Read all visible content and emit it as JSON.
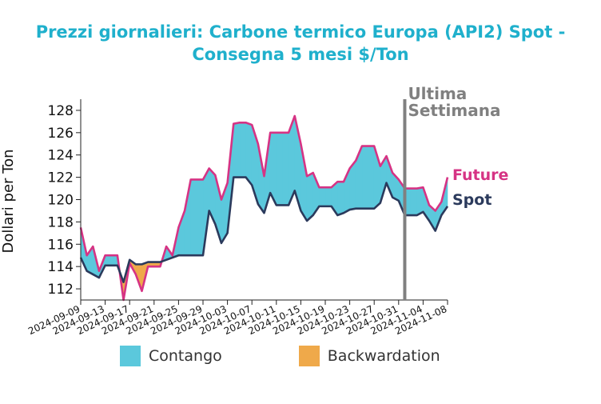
{
  "title_lines": [
    "Prezzi giornalieri: Carbone termico Europa (API2) Spot -",
    "Consegna 5 mesi $/Ton"
  ],
  "colors": {
    "title": "#1fb0cc",
    "future": "#d63384",
    "spot": "#2b3a5c",
    "contango": "#5bc8dc",
    "backwardation": "#efa94a",
    "marker": "#808080"
  },
  "chart_data": {
    "type": "area",
    "title": "Prezzi giornalieri: Carbone termico Europa (API2) Spot - Consegna 5 mesi $/Ton",
    "ylabel": "Dollari per Ton",
    "xlabel": "",
    "ylim": [
      111,
      129
    ],
    "xlim": [
      "2024-09-09",
      "2024-11-08"
    ],
    "yticks": [
      112,
      114,
      116,
      118,
      120,
      122,
      124,
      126,
      128
    ],
    "xticks": [
      "2024-09-09",
      "2024-09-13",
      "2024-09-17",
      "2024-09-21",
      "2024-09-25",
      "2024-09-29",
      "2024-10-03",
      "2024-10-07",
      "2024-10-11",
      "2024-10-15",
      "2024-10-19",
      "2024-10-23",
      "2024-10-27",
      "2024-10-31",
      "2024-11-04",
      "2024-11-08"
    ],
    "marker": {
      "date": "2024-11-01",
      "label_lines": [
        "Ultima",
        "Settimana"
      ]
    },
    "legend": [
      {
        "name": "Contango",
        "color": "#5bc8dc"
      },
      {
        "name": "Backwardation",
        "color": "#efa94a"
      }
    ],
    "series": [
      {
        "name": "Future",
        "color": "#d63384",
        "x": [
          "2024-09-09",
          "2024-09-10",
          "2024-09-11",
          "2024-09-12",
          "2024-09-13",
          "2024-09-14",
          "2024-09-15",
          "2024-09-16",
          "2024-09-17",
          "2024-09-18",
          "2024-09-19",
          "2024-09-20",
          "2024-09-21",
          "2024-09-22",
          "2024-09-23",
          "2024-09-24",
          "2024-09-25",
          "2024-09-26",
          "2024-09-27",
          "2024-09-28",
          "2024-09-29",
          "2024-09-30",
          "2024-10-01",
          "2024-10-02",
          "2024-10-03",
          "2024-10-04",
          "2024-10-05",
          "2024-10-06",
          "2024-10-07",
          "2024-10-08",
          "2024-10-09",
          "2024-10-10",
          "2024-10-11",
          "2024-10-12",
          "2024-10-13",
          "2024-10-14",
          "2024-10-15",
          "2024-10-16",
          "2024-10-17",
          "2024-10-18",
          "2024-10-19",
          "2024-10-20",
          "2024-10-21",
          "2024-10-22",
          "2024-10-23",
          "2024-10-24",
          "2024-10-25",
          "2024-10-26",
          "2024-10-27",
          "2024-10-28",
          "2024-10-29",
          "2024-10-30",
          "2024-10-31",
          "2024-11-01",
          "2024-11-02",
          "2024-11-03",
          "2024-11-04",
          "2024-11-05",
          "2024-11-06",
          "2024-11-07",
          "2024-11-08"
        ],
        "values": [
          117.5,
          115.0,
          115.8,
          113.6,
          115.0,
          115.0,
          115.0,
          111.0,
          114.3,
          113.3,
          111.8,
          114.0,
          114.0,
          114.0,
          115.8,
          115.0,
          117.5,
          119.0,
          121.8,
          121.8,
          121.8,
          122.8,
          122.2,
          120.0,
          121.5,
          126.8,
          126.9,
          126.9,
          126.7,
          125.0,
          122.1,
          126.0,
          126.0,
          126.0,
          126.0,
          127.5,
          125.0,
          122.1,
          122.4,
          121.1,
          121.1,
          121.1,
          121.6,
          121.6,
          122.8,
          123.5,
          124.8,
          124.8,
          124.8,
          123.0,
          123.9,
          122.4,
          121.8,
          121.0,
          121.0,
          121.0,
          121.1,
          119.5,
          119.0,
          119.8,
          122.0
        ]
      },
      {
        "name": "Spot",
        "color": "#2b3a5c",
        "x": [
          "2024-09-09",
          "2024-09-10",
          "2024-09-11",
          "2024-09-12",
          "2024-09-13",
          "2024-09-14",
          "2024-09-15",
          "2024-09-16",
          "2024-09-17",
          "2024-09-18",
          "2024-09-19",
          "2024-09-20",
          "2024-09-21",
          "2024-09-22",
          "2024-09-23",
          "2024-09-24",
          "2024-09-25",
          "2024-09-26",
          "2024-09-27",
          "2024-09-28",
          "2024-09-29",
          "2024-09-30",
          "2024-10-01",
          "2024-10-02",
          "2024-10-03",
          "2024-10-04",
          "2024-10-05",
          "2024-10-06",
          "2024-10-07",
          "2024-10-08",
          "2024-10-09",
          "2024-10-10",
          "2024-10-11",
          "2024-10-12",
          "2024-10-13",
          "2024-10-14",
          "2024-10-15",
          "2024-10-16",
          "2024-10-17",
          "2024-10-18",
          "2024-10-19",
          "2024-10-20",
          "2024-10-21",
          "2024-10-22",
          "2024-10-23",
          "2024-10-24",
          "2024-10-25",
          "2024-10-26",
          "2024-10-27",
          "2024-10-28",
          "2024-10-29",
          "2024-10-30",
          "2024-10-31",
          "2024-11-01",
          "2024-11-02",
          "2024-11-03",
          "2024-11-04",
          "2024-11-05",
          "2024-11-06",
          "2024-11-07",
          "2024-11-08"
        ],
        "values": [
          114.8,
          113.6,
          113.3,
          113.0,
          114.1,
          114.1,
          114.1,
          112.6,
          114.6,
          114.2,
          114.2,
          114.4,
          114.4,
          114.4,
          114.6,
          114.8,
          115.0,
          115.0,
          115.0,
          115.0,
          115.0,
          119.0,
          117.8,
          116.1,
          117.0,
          122.0,
          122.0,
          122.0,
          121.3,
          119.6,
          118.8,
          120.6,
          119.5,
          119.5,
          119.5,
          120.8,
          119.0,
          118.1,
          118.6,
          119.4,
          119.4,
          119.4,
          118.6,
          118.8,
          119.1,
          119.2,
          119.2,
          119.2,
          119.2,
          119.7,
          121.5,
          120.2,
          119.9,
          118.6,
          118.6,
          118.6,
          118.9,
          118.1,
          117.2,
          118.6,
          119.4
        ]
      }
    ]
  }
}
